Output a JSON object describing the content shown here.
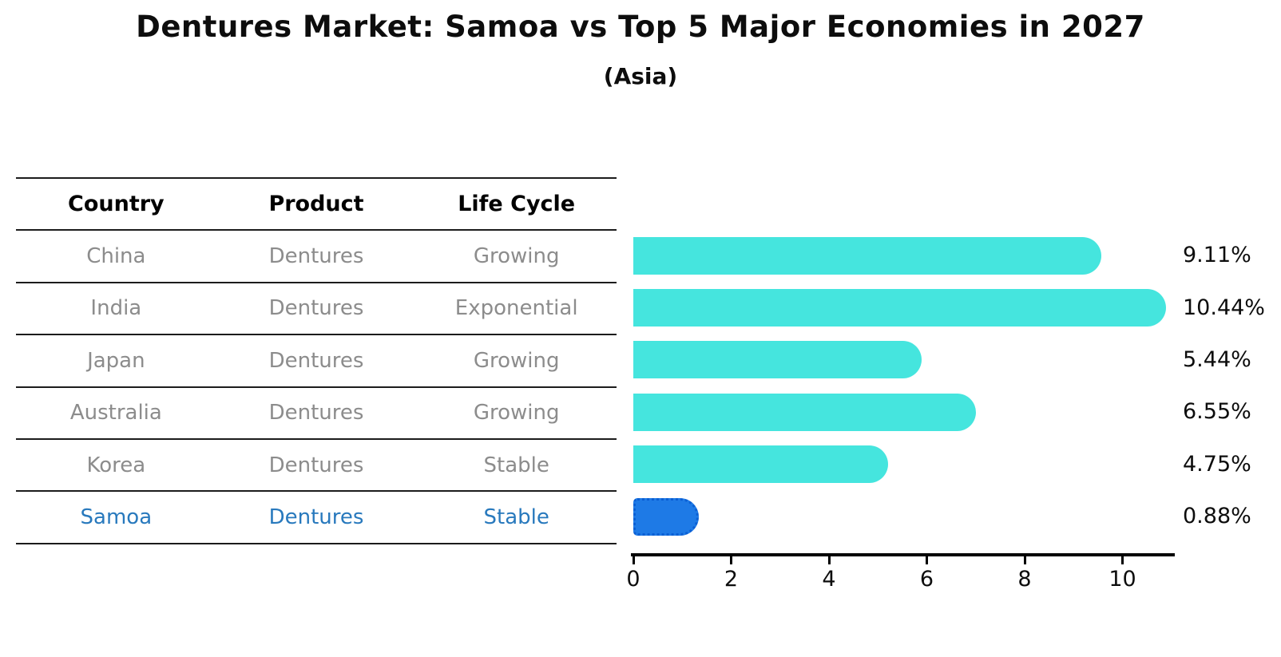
{
  "title": "Dentures Market: Samoa vs Top 5 Major Economies in 2027",
  "subtitle": "(Asia)",
  "table": {
    "headers": [
      "Country",
      "Product",
      "Life Cycle"
    ],
    "rows": [
      {
        "country": "China",
        "product": "Dentures",
        "life_cycle": "Growing",
        "highlight": false
      },
      {
        "country": "India",
        "product": "Dentures",
        "life_cycle": "Exponential",
        "highlight": false
      },
      {
        "country": "Japan",
        "product": "Dentures",
        "life_cycle": "Growing",
        "highlight": false
      },
      {
        "country": "Australia",
        "product": "Dentures",
        "life_cycle": "Growing",
        "highlight": false
      },
      {
        "country": "Korea",
        "product": "Dentures",
        "life_cycle": "Stable",
        "highlight": false
      },
      {
        "country": "Samoa",
        "product": "Dentures",
        "life_cycle": "Stable",
        "highlight": true
      }
    ]
  },
  "chart_data": {
    "type": "bar",
    "orientation": "horizontal",
    "categories": [
      "China",
      "India",
      "Japan",
      "Australia",
      "Korea",
      "Samoa"
    ],
    "values": [
      9.11,
      10.44,
      5.44,
      6.55,
      4.75,
      0.88
    ],
    "value_labels": [
      "9.11%",
      "10.44%",
      "5.44%",
      "6.55%",
      "4.75%",
      "0.88%"
    ],
    "x_ticks": [
      0,
      2,
      4,
      6,
      8,
      10
    ],
    "x_tick_labels": [
      "0",
      "2",
      "4",
      "6",
      "8",
      "10"
    ],
    "xlim": [
      0,
      11.05
    ],
    "grid": false,
    "legend": "none",
    "highlight_index": 5,
    "bar_color": "#45e5de",
    "highlight_color": "#1e7ae6",
    "highlight_border_color": "#0b5fd4",
    "label_color": "#0d0d0d",
    "muted_text_color": "#8c8c8c",
    "highlight_text_color": "#2879bd"
  }
}
